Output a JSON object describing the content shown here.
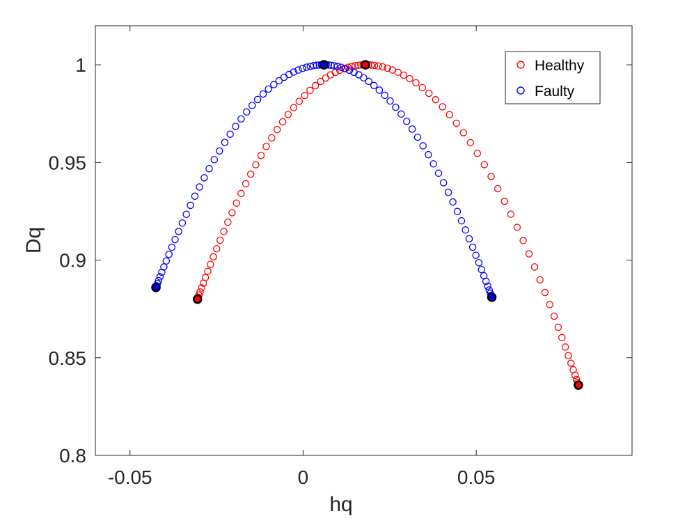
{
  "chart_data": {
    "type": "scatter",
    "title": "",
    "xlabel": "hq",
    "ylabel": "Dq",
    "xlim": [
      -0.06,
      0.095
    ],
    "ylim": [
      0.8,
      1.02
    ],
    "xticks": [
      -0.05,
      0,
      0.05
    ],
    "xtick_labels": [
      "-0.05",
      "0",
      "0.05"
    ],
    "yticks": [
      0.8,
      0.85,
      0.9,
      0.95,
      1
    ],
    "ytick_labels": [
      "0.8",
      "0.85",
      "0.9",
      "0.95",
      "1"
    ],
    "grid": false,
    "legend_position": "top-right",
    "series": [
      {
        "name": "Healthy",
        "color": "#ff0000",
        "marker": "open-circle",
        "points_count": 91,
        "curve": {
          "peak": [
            0.018,
            1.0
          ],
          "left_end": [
            -0.0305,
            0.88
          ],
          "right_end": [
            0.0795,
            0.836
          ]
        },
        "highlighted_points": [
          {
            "x": -0.0305,
            "y": 0.88
          },
          {
            "x": 0.018,
            "y": 1.0
          },
          {
            "x": 0.0795,
            "y": 0.836
          }
        ]
      },
      {
        "name": "Faulty",
        "color": "#0000ff",
        "marker": "open-circle",
        "points_count": 91,
        "curve": {
          "peak": [
            0.006,
            1.0
          ],
          "left_end": [
            -0.0425,
            0.886
          ],
          "right_end": [
            0.0545,
            0.881
          ]
        },
        "highlighted_points": [
          {
            "x": -0.0425,
            "y": 0.886
          },
          {
            "x": 0.006,
            "y": 1.0
          },
          {
            "x": 0.0545,
            "y": 0.881
          }
        ]
      }
    ]
  }
}
